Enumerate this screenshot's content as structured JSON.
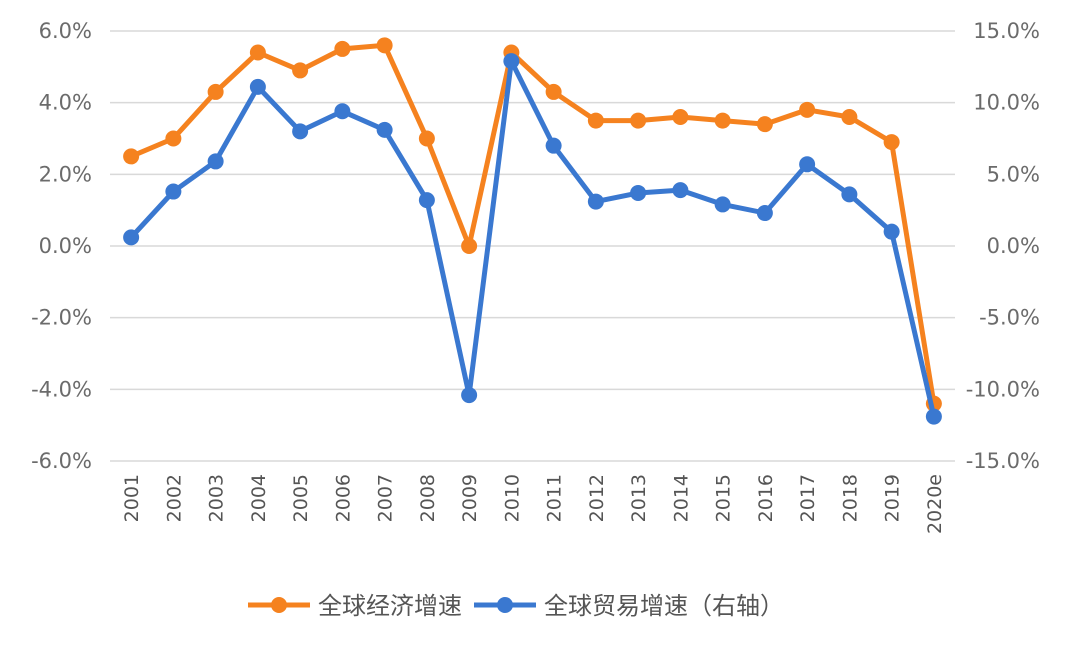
{
  "chart_data": {
    "type": "line",
    "categories": [
      "2001",
      "2002",
      "2003",
      "2004",
      "2005",
      "2006",
      "2007",
      "2008",
      "2009",
      "2010",
      "2011",
      "2012",
      "2013",
      "2014",
      "2015",
      "2016",
      "2017",
      "2018",
      "2019",
      "2020e"
    ],
    "series": [
      {
        "name": "全球经济增速",
        "axis": "left",
        "color": "#f5821f",
        "values": [
          2.5,
          3.0,
          4.3,
          5.4,
          4.9,
          5.5,
          5.6,
          3.0,
          0.0,
          5.4,
          4.3,
          3.5,
          3.5,
          3.6,
          3.5,
          3.4,
          3.8,
          3.6,
          2.9,
          -4.4
        ]
      },
      {
        "name": "全球贸易增速（右轴）",
        "axis": "right",
        "color": "#3a78d0",
        "values": [
          0.6,
          3.8,
          5.9,
          11.1,
          8.0,
          9.4,
          8.1,
          3.2,
          -10.4,
          12.9,
          7.0,
          3.1,
          3.7,
          3.9,
          2.9,
          2.3,
          5.7,
          3.6,
          1.0,
          -11.9
        ]
      }
    ],
    "yleft": {
      "lim": [
        -6,
        6
      ],
      "ticks": [
        6,
        4,
        2,
        0,
        -2,
        -4,
        -6
      ],
      "tick_labels": [
        "6.0%",
        "4.0%",
        "2.0%",
        "0.0%",
        "-2.0%",
        "-4.0%",
        "-6.0%"
      ]
    },
    "yright": {
      "lim": [
        -15,
        15
      ],
      "ticks": [
        15,
        10,
        5,
        0,
        -5,
        -10,
        -15
      ],
      "tick_labels": [
        "15.0%",
        "10.0%",
        "5.0%",
        "0.0%",
        "-5.0%",
        "-10.0%",
        "-15.0%"
      ]
    },
    "grid": true,
    "legend_position": "bottom"
  }
}
